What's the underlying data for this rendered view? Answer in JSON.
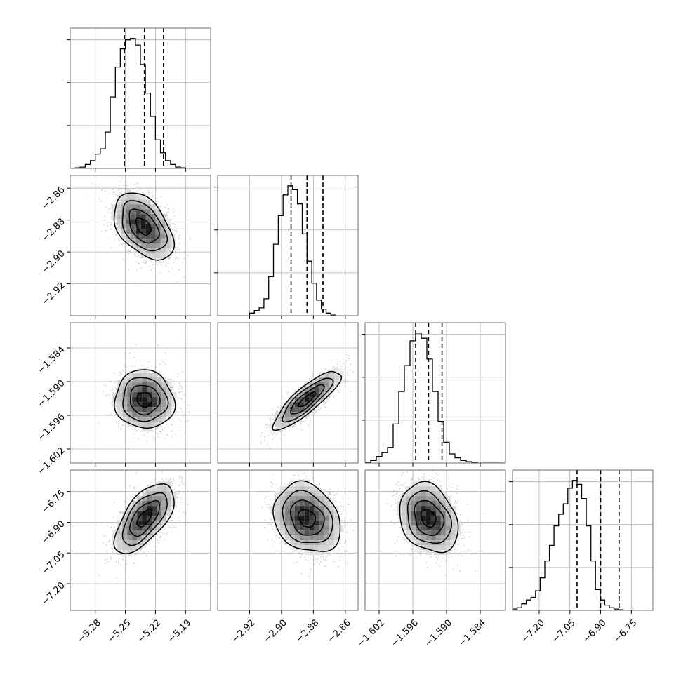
{
  "chart_data": {
    "type": "corner",
    "colors": {
      "line": "#000000",
      "grid": "#b0b0b0",
      "scatter": "#9a9a9a",
      "frame": "#6e6e6e"
    },
    "grid": true,
    "parameters": [
      {
        "index": 0,
        "range": [
          -5.305,
          -5.165
        ],
        "ticks": [
          -5.28,
          -5.25,
          -5.22,
          -5.19
        ],
        "tick_labels": [
          "−5.28",
          "−5.25",
          "−5.22",
          "−5.19"
        ],
        "quantiles": [
          -5.251,
          -5.231,
          -5.212
        ],
        "hist_start": -5.3,
        "hist_step": 0.005,
        "hist": [
          0.005,
          0.01,
          0.03,
          0.06,
          0.11,
          0.15,
          0.28,
          0.55,
          0.78,
          0.92,
          0.99,
          1.0,
          0.95,
          0.8,
          0.58,
          0.4,
          0.22,
          0.12,
          0.06,
          0.03,
          0.01,
          0.005,
          0.002,
          0.0
        ]
      },
      {
        "index": 1,
        "range": [
          -2.94,
          -2.852
        ],
        "ticks": [
          -2.92,
          -2.9,
          -2.88,
          -2.86
        ],
        "tick_labels": [
          "−2.92",
          "−2.90",
          "−2.88",
          "−2.86"
        ],
        "quantiles": [
          -2.894,
          -2.884,
          -2.874
        ],
        "hist_start": -2.92,
        "hist_step": 0.003,
        "hist": [
          0.02,
          0.04,
          0.06,
          0.13,
          0.3,
          0.55,
          0.77,
          0.93,
          1.0,
          0.97,
          0.86,
          0.63,
          0.42,
          0.25,
          0.12,
          0.05,
          0.02,
          0.005
        ]
      },
      {
        "index": 2,
        "range": [
          -1.6045,
          -1.5795
        ],
        "ticks": [
          -1.602,
          -1.596,
          -1.59,
          -1.584
        ],
        "tick_labels": [
          "−1.602",
          "−1.596",
          "−1.590",
          "−1.584"
        ],
        "quantiles": [
          -1.5955,
          -1.5932,
          -1.5908
        ],
        "hist_start": -1.6045,
        "hist_step": 0.001,
        "hist": [
          0.005,
          0.02,
          0.05,
          0.08,
          0.12,
          0.3,
          0.55,
          0.75,
          0.94,
          1.0,
          0.96,
          0.8,
          0.55,
          0.32,
          0.16,
          0.07,
          0.04,
          0.02,
          0.01,
          0.005,
          0.0,
          0.0,
          0.0,
          0.0,
          0.0
        ]
      },
      {
        "index": 3,
        "range": [
          -7.33,
          -6.645
        ],
        "ticks": [
          -7.2,
          -7.05,
          -6.9,
          -6.75
        ],
        "tick_labels": [
          "−7.20",
          "−7.05",
          "−6.90",
          "−6.75"
        ],
        "quantiles": [
          -7.015,
          -6.9,
          -6.81
        ],
        "hist_start": -7.33,
        "hist_step": 0.0225,
        "hist": [
          0.01,
          0.02,
          0.05,
          0.08,
          0.1,
          0.15,
          0.25,
          0.38,
          0.5,
          0.65,
          0.74,
          0.82,
          0.94,
          1.0,
          0.97,
          0.86,
          0.65,
          0.38,
          0.16,
          0.08,
          0.04,
          0.02,
          0.01,
          0.005,
          0.0,
          0.0,
          0.0,
          0.0,
          0.0,
          0.0
        ]
      }
    ],
    "pairs": [
      {
        "x": 0,
        "y": 1,
        "center": [
          -5.232,
          -2.884
        ],
        "sigma": [
          0.0148,
          0.0105
        ],
        "rho": -0.45
      },
      {
        "x": 0,
        "y": 2,
        "center": [
          -5.231,
          -1.5932
        ],
        "sigma": [
          0.0148,
          0.0026
        ],
        "rho": -0.05
      },
      {
        "x": 1,
        "y": 2,
        "center": [
          -2.884,
          -1.5932
        ],
        "sigma": [
          0.0105,
          0.0026
        ],
        "rho": 0.85
      },
      {
        "x": 0,
        "y": 3,
        "center": [
          -5.231,
          -6.88
        ],
        "sigma": [
          0.0148,
          0.085
        ],
        "rho": 0.62
      },
      {
        "x": 1,
        "y": 3,
        "center": [
          -2.884,
          -6.88
        ],
        "sigma": [
          0.0105,
          0.085
        ],
        "rho": -0.22
      },
      {
        "x": 2,
        "y": 3,
        "center": [
          -1.5932,
          -6.88
        ],
        "sigma": [
          0.0026,
          0.085
        ],
        "rho": -0.25
      }
    ]
  }
}
